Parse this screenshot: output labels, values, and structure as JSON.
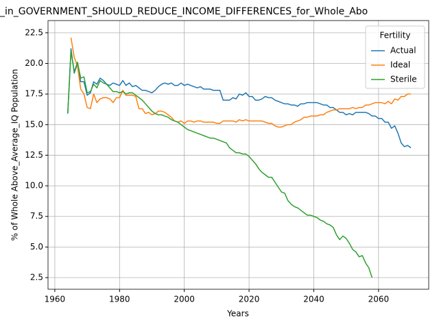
{
  "chart_data": {
    "type": "line",
    "title": "_in_GOVERNMENT_SHOULD_REDUCE_INCOME_DIFFERENCES_for_Whole_Abo",
    "xlabel": "Years",
    "ylabel": "% of Whole Above_Average_IQ Population",
    "legend_title": "Fertility",
    "legend": "upper right",
    "grid": true,
    "x": [
      1964,
      1965,
      1966,
      1967,
      1968,
      1969,
      1970,
      1971,
      1972,
      1973,
      1974,
      1975,
      1976,
      1977,
      1978,
      1979,
      1980,
      1981,
      1982,
      1983,
      1984,
      1985,
      1986,
      1987,
      1988,
      1989,
      1990,
      1991,
      1992,
      1993,
      1994,
      1995,
      1996,
      1997,
      1998,
      1999,
      2000,
      2001,
      2002,
      2003,
      2004,
      2005,
      2006,
      2007,
      2008,
      2009,
      2010,
      2011,
      2012,
      2013,
      2014,
      2015,
      2016,
      2017,
      2018,
      2019,
      2020,
      2021,
      2022,
      2023,
      2024,
      2025,
      2026,
      2027,
      2028,
      2029,
      2030,
      2031,
      2032,
      2033,
      2034,
      2035,
      2036,
      2037,
      2038,
      2039,
      2040,
      2041,
      2042,
      2043,
      2044,
      2045,
      2046,
      2047,
      2048,
      2049,
      2050,
      2051,
      2052,
      2053,
      2054,
      2055,
      2056,
      2057,
      2058,
      2059,
      2060,
      2061,
      2062,
      2063,
      2064,
      2065,
      2066,
      2067,
      2068,
      2069,
      2070
    ],
    "series": [
      {
        "name": "Actual",
        "color": "#1f77b4",
        "values": [
          15.9,
          21.2,
          19.2,
          20.0,
          18.5,
          18.5,
          17.4,
          17.6,
          18.5,
          18.3,
          18.8,
          18.6,
          18.3,
          18.2,
          18.4,
          18.3,
          18.2,
          18.6,
          18.2,
          18.4,
          18.1,
          18.2,
          18.0,
          17.8,
          17.8,
          17.7,
          17.6,
          17.8,
          18.1,
          18.3,
          18.4,
          18.3,
          18.4,
          18.2,
          18.2,
          18.4,
          18.2,
          18.3,
          18.2,
          18.1,
          18.0,
          18.1,
          17.9,
          17.9,
          17.9,
          17.8,
          17.8,
          17.8,
          17.0,
          17.0,
          17.0,
          17.2,
          17.1,
          17.5,
          17.4,
          17.6,
          17.3,
          17.3,
          17.0,
          17.0,
          17.1,
          17.3,
          17.2,
          17.2,
          17.0,
          16.9,
          16.8,
          16.7,
          16.7,
          16.6,
          16.6,
          16.5,
          16.7,
          16.7,
          16.8,
          16.8,
          16.8,
          16.8,
          16.7,
          16.6,
          16.6,
          16.4,
          16.4,
          16.2,
          16.0,
          16.0,
          15.8,
          15.9,
          15.8,
          16.0,
          16.0,
          16.0,
          16.0,
          15.9,
          15.7,
          15.7,
          15.5,
          15.5,
          15.2,
          15.2,
          14.7,
          14.9,
          14.3,
          13.5,
          13.2,
          13.3,
          13.1
        ]
      },
      {
        "name": "Ideal",
        "color": "#ff7f0e",
        "values": [
          null,
          22.1,
          20.5,
          19.8,
          17.9,
          17.5,
          16.4,
          16.3,
          17.5,
          16.8,
          17.1,
          17.2,
          17.2,
          17.1,
          16.8,
          17.2,
          17.2,
          17.8,
          17.4,
          17.4,
          17.4,
          17.3,
          16.3,
          16.3,
          15.9,
          16.0,
          15.8,
          15.9,
          16.1,
          16.1,
          16.0,
          15.8,
          15.6,
          15.3,
          15.2,
          15.3,
          15.1,
          15.3,
          15.3,
          15.2,
          15.3,
          15.3,
          15.2,
          15.2,
          15.2,
          15.2,
          15.1,
          15.1,
          15.3,
          15.3,
          15.3,
          15.3,
          15.2,
          15.4,
          15.3,
          15.4,
          15.3,
          15.3,
          15.3,
          15.3,
          15.3,
          15.2,
          15.1,
          15.1,
          14.9,
          14.8,
          14.8,
          14.9,
          15.0,
          15.0,
          15.2,
          15.3,
          15.4,
          15.6,
          15.6,
          15.7,
          15.7,
          15.7,
          15.8,
          15.8,
          16.0,
          16.1,
          16.2,
          16.2,
          16.3,
          16.3,
          16.3,
          16.3,
          16.4,
          16.3,
          16.4,
          16.4,
          16.6,
          16.6,
          16.7,
          16.8,
          16.8,
          16.8,
          16.7,
          16.9,
          16.7,
          17.1,
          17.0,
          17.3,
          17.3,
          17.5,
          17.5
        ]
      },
      {
        "name": "Sterile",
        "color": "#2ca02c",
        "values": [
          15.9,
          21.0,
          19.3,
          20.1,
          18.8,
          18.9,
          17.6,
          17.7,
          18.3,
          18.0,
          18.6,
          18.4,
          18.3,
          18.0,
          17.7,
          17.7,
          17.6,
          17.7,
          17.5,
          17.6,
          17.6,
          17.4,
          17.2,
          17.0,
          16.7,
          16.4,
          16.1,
          15.9,
          15.8,
          15.8,
          15.7,
          15.6,
          15.4,
          15.3,
          15.2,
          15.0,
          14.8,
          14.6,
          14.5,
          14.4,
          14.3,
          14.2,
          14.1,
          14.0,
          13.9,
          13.9,
          13.8,
          13.7,
          13.6,
          13.5,
          13.1,
          12.9,
          12.7,
          12.7,
          12.6,
          12.6,
          12.4,
          12.1,
          11.8,
          11.4,
          11.1,
          10.9,
          10.7,
          10.7,
          10.3,
          9.9,
          9.5,
          9.4,
          8.8,
          8.5,
          8.3,
          8.2,
          8.0,
          7.8,
          7.6,
          7.6,
          7.5,
          7.4,
          7.2,
          7.1,
          6.9,
          6.8,
          6.6,
          6.0,
          5.6,
          5.9,
          5.7,
          5.3,
          4.8,
          4.6,
          4.2,
          4.3,
          3.7,
          3.3,
          2.5,
          null,
          null,
          null,
          null,
          null,
          null,
          null,
          null,
          null,
          null,
          null,
          null
        ]
      }
    ],
    "xlim": [
      1957.9,
      2075.5
    ],
    "xticks": [
      1960,
      1980,
      2000,
      2020,
      2040,
      2060
    ],
    "ylim": [
      1.55,
      23.5
    ],
    "yticks": [
      2.5,
      {
        "value": 5,
        "label": "5.0"
      },
      7.5,
      {
        "value": 10,
        "label": "10.0"
      },
      12.5,
      {
        "value": 15,
        "label": "15.0"
      },
      17.5,
      {
        "value": 20,
        "label": "20.0"
      },
      22.5
    ]
  }
}
